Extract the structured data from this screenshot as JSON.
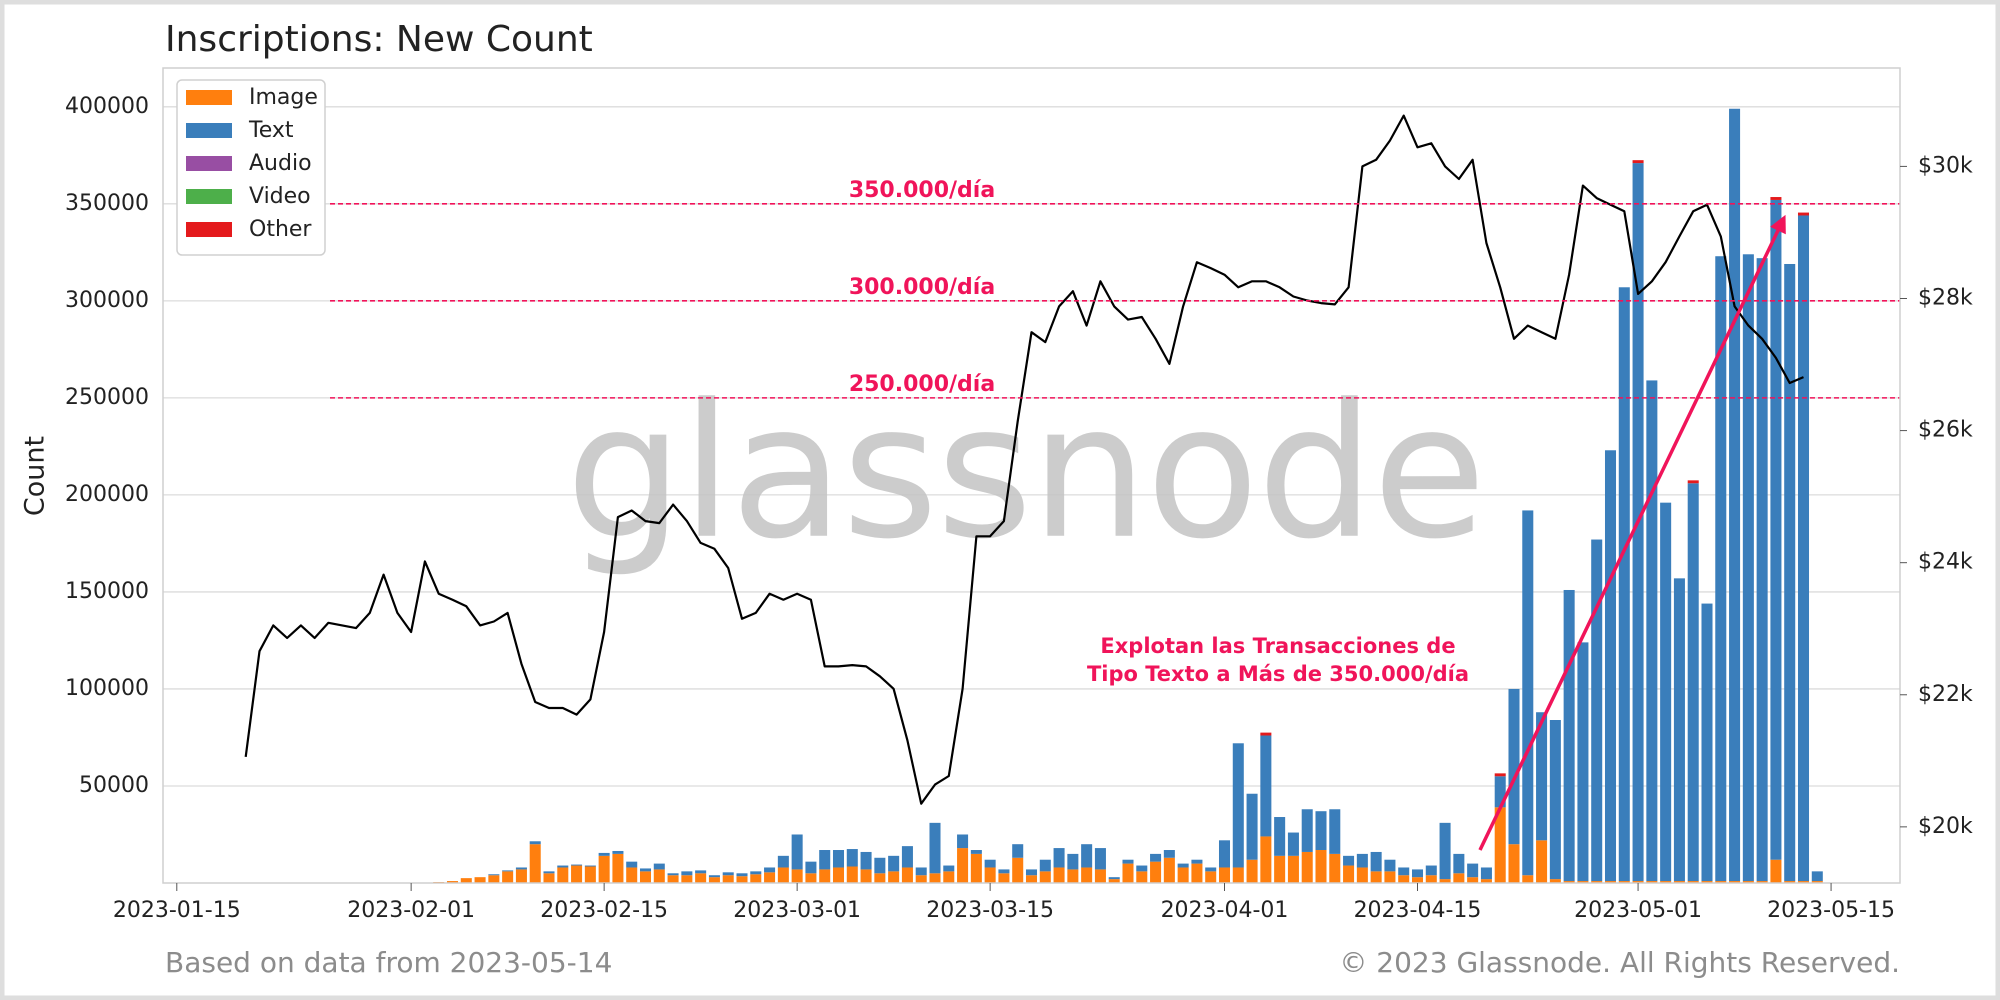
{
  "chart_data": {
    "type": "bar",
    "title": "Inscriptions: New Count",
    "y_label": "Count",
    "watermark": "glassnode",
    "footer_left": "Based on data from 2023-05-14",
    "footer_right": "© 2023 Glassnode. All Rights Reserved.",
    "annotation": [
      "Explotan las Transacciones de",
      "Tipo Texto a Más de 350.000/día"
    ],
    "reference_lines": [
      {
        "value": 350000,
        "label": "350.000/día"
      },
      {
        "value": 300000,
        "label": "300.000/día"
      },
      {
        "value": 250000,
        "label": "250.000/día"
      }
    ],
    "reference_color": "#f0145a",
    "legend": "upper left",
    "grid": true,
    "stacked": true,
    "xlim": [
      "2023-01-14",
      "2023-05-20"
    ],
    "xticks": [
      "2023-01-15",
      "2023-02-01",
      "2023-02-15",
      "2023-03-01",
      "2023-03-15",
      "2023-04-01",
      "2023-04-15",
      "2023-05-01",
      "2023-05-15"
    ],
    "ylim": [
      0,
      420000
    ],
    "yticks": [
      50000,
      100000,
      150000,
      200000,
      250000,
      300000,
      350000,
      400000
    ],
    "y2lim": [
      19150,
      31490
    ],
    "y2ticks": [
      {
        "value": 20000,
        "label": "$20k"
      },
      {
        "value": 22000,
        "label": "$22k"
      },
      {
        "value": 24000,
        "label": "$24k"
      },
      {
        "value": 26000,
        "label": "$26k"
      },
      {
        "value": 28000,
        "label": "$28k"
      },
      {
        "value": 30000,
        "label": "$30k"
      }
    ],
    "x": [
      "2023-02-03",
      "2023-02-04",
      "2023-02-05",
      "2023-02-06",
      "2023-02-07",
      "2023-02-08",
      "2023-02-09",
      "2023-02-10",
      "2023-02-11",
      "2023-02-12",
      "2023-02-13",
      "2023-02-14",
      "2023-02-15",
      "2023-02-16",
      "2023-02-17",
      "2023-02-18",
      "2023-02-19",
      "2023-02-20",
      "2023-02-21",
      "2023-02-22",
      "2023-02-23",
      "2023-02-24",
      "2023-02-25",
      "2023-02-26",
      "2023-02-27",
      "2023-02-28",
      "2023-03-01",
      "2023-03-02",
      "2023-03-03",
      "2023-03-04",
      "2023-03-05",
      "2023-03-06",
      "2023-03-07",
      "2023-03-08",
      "2023-03-09",
      "2023-03-10",
      "2023-03-11",
      "2023-03-12",
      "2023-03-13",
      "2023-03-14",
      "2023-03-15",
      "2023-03-16",
      "2023-03-17",
      "2023-03-18",
      "2023-03-19",
      "2023-03-20",
      "2023-03-21",
      "2023-03-22",
      "2023-03-23",
      "2023-03-24",
      "2023-03-25",
      "2023-03-26",
      "2023-03-27",
      "2023-03-28",
      "2023-03-29",
      "2023-03-30",
      "2023-03-31",
      "2023-04-01",
      "2023-04-02",
      "2023-04-03",
      "2023-04-04",
      "2023-04-05",
      "2023-04-06",
      "2023-04-07",
      "2023-04-08",
      "2023-04-09",
      "2023-04-10",
      "2023-04-11",
      "2023-04-12",
      "2023-04-13",
      "2023-04-14",
      "2023-04-15",
      "2023-04-16",
      "2023-04-17",
      "2023-04-18",
      "2023-04-19",
      "2023-04-20",
      "2023-04-21",
      "2023-04-22",
      "2023-04-23",
      "2023-04-24",
      "2023-04-25",
      "2023-04-26",
      "2023-04-27",
      "2023-04-28",
      "2023-04-29",
      "2023-04-30",
      "2023-05-01",
      "2023-05-02",
      "2023-05-03",
      "2023-05-04",
      "2023-05-05",
      "2023-05-06",
      "2023-05-07",
      "2023-05-08",
      "2023-05-09",
      "2023-05-10",
      "2023-05-11",
      "2023-05-12",
      "2023-05-13",
      "2023-05-14"
    ],
    "series": [
      {
        "name": "Image",
        "type": "bar",
        "color": "#ff7f0e",
        "values": [
          500,
          1000,
          2500,
          3000,
          4000,
          6000,
          7000,
          20000,
          5000,
          8000,
          9000,
          8500,
          14000,
          15000,
          8000,
          6000,
          7000,
          4000,
          4000,
          5000,
          3000,
          4000,
          3500,
          4500,
          5500,
          8000,
          7000,
          5000,
          7000,
          8000,
          8500,
          7000,
          5000,
          6000,
          8000,
          4000,
          5000,
          6000,
          18000,
          15000,
          8000,
          5000,
          13000,
          4000,
          6000,
          8000,
          7000,
          8000,
          7000,
          2000,
          10000,
          6000,
          11000,
          13000,
          8000,
          10000,
          6000,
          8000,
          8000,
          12000,
          24000,
          14000,
          14000,
          16000,
          17000,
          15000,
          9000,
          8000,
          6000,
          6000,
          4000,
          3000,
          4000,
          2000,
          5000,
          3000,
          2000,
          39000,
          20000,
          4000,
          22000,
          2000,
          1000,
          1000,
          1000,
          1000,
          1000,
          1000,
          1000,
          1000,
          1000,
          1000,
          1000,
          1000,
          1000,
          1000,
          1000,
          12000,
          1000,
          1000,
          1000
        ]
      },
      {
        "name": "Text",
        "type": "bar",
        "color": "#3a7ebb",
        "values": [
          0,
          0,
          0,
          0,
          500,
          500,
          1000,
          1500,
          1000,
          1000,
          500,
          500,
          1500,
          1500,
          3000,
          1500,
          3000,
          1000,
          2000,
          1500,
          1000,
          1500,
          1500,
          1500,
          2500,
          6000,
          18000,
          6000,
          10000,
          9000,
          9000,
          9000,
          8000,
          8000,
          11000,
          4000,
          26000,
          3000,
          7000,
          2000,
          4000,
          2000,
          7000,
          3000,
          6000,
          10000,
          8000,
          12000,
          11000,
          1000,
          2000,
          3000,
          4000,
          4000,
          2000,
          2000,
          2000,
          14000,
          64000,
          34000,
          52000,
          20000,
          12000,
          22000,
          20000,
          23000,
          5000,
          7000,
          10000,
          6000,
          4000,
          4000,
          5000,
          29000,
          10000,
          7000,
          6000,
          16000,
          80000,
          188000,
          66000,
          82000,
          150000,
          123000,
          176000,
          222000,
          306000,
          370000,
          258000,
          195000,
          156000,
          205000,
          143000,
          322000,
          398000,
          323000,
          321000,
          340000,
          318000,
          343000,
          5000
        ]
      },
      {
        "name": "Audio",
        "type": "bar",
        "color": "#984ea3",
        "values": [
          0,
          0,
          0,
          0,
          0,
          0,
          0,
          0,
          0,
          0,
          0,
          0,
          0,
          0,
          0,
          0,
          0,
          0,
          0,
          0,
          0,
          0,
          0,
          0,
          0,
          0,
          0,
          0,
          0,
          0,
          0,
          0,
          0,
          0,
          0,
          0,
          0,
          0,
          0,
          0,
          0,
          0,
          0,
          0,
          0,
          0,
          0,
          0,
          0,
          0,
          0,
          0,
          0,
          0,
          0,
          0,
          0,
          0,
          0,
          0,
          0,
          0,
          0,
          0,
          0,
          0,
          0,
          0,
          0,
          0,
          0,
          0,
          0,
          0,
          0,
          0,
          0,
          0,
          0,
          0,
          0,
          0,
          0,
          0,
          0,
          0,
          0,
          0,
          0,
          0,
          0,
          0,
          0,
          0,
          0,
          0,
          0,
          0,
          0,
          0,
          0
        ]
      },
      {
        "name": "Video",
        "type": "bar",
        "color": "#4daf4a",
        "values": [
          0,
          0,
          0,
          0,
          0,
          0,
          0,
          0,
          0,
          0,
          0,
          0,
          0,
          0,
          0,
          0,
          0,
          0,
          0,
          0,
          0,
          0,
          0,
          0,
          0,
          0,
          0,
          0,
          0,
          0,
          0,
          0,
          0,
          0,
          0,
          0,
          0,
          0,
          0,
          0,
          0,
          0,
          0,
          0,
          0,
          0,
          0,
          0,
          0,
          0,
          0,
          0,
          0,
          0,
          0,
          0,
          0,
          0,
          0,
          0,
          0,
          0,
          0,
          0,
          0,
          0,
          0,
          0,
          0,
          0,
          0,
          0,
          0,
          0,
          0,
          0,
          0,
          0,
          0,
          0,
          0,
          0,
          0,
          0,
          0,
          0,
          0,
          0,
          0,
          0,
          0,
          0,
          0,
          0,
          0,
          0,
          0,
          0,
          0,
          0,
          0
        ]
      },
      {
        "name": "Other",
        "type": "bar",
        "color": "#e41a1c",
        "values": [
          0,
          0,
          0,
          0,
          0,
          0,
          0,
          0,
          0,
          0,
          0,
          0,
          0,
          0,
          0,
          0,
          0,
          0,
          0,
          0,
          0,
          0,
          0,
          0,
          0,
          0,
          0,
          0,
          0,
          0,
          0,
          0,
          0,
          0,
          0,
          0,
          0,
          0,
          0,
          0,
          0,
          0,
          0,
          0,
          0,
          0,
          0,
          0,
          0,
          0,
          0,
          0,
          0,
          0,
          0,
          0,
          0,
          0,
          0,
          0,
          1500,
          0,
          0,
          0,
          0,
          0,
          0,
          0,
          0,
          0,
          0,
          0,
          0,
          0,
          0,
          0,
          0,
          1500,
          0,
          0,
          0,
          0,
          0,
          0,
          0,
          0,
          0,
          1500,
          0,
          0,
          0,
          1500,
          0,
          0,
          0,
          0,
          0,
          1500,
          0,
          1500,
          0
        ]
      },
      {
        "type": "line",
        "axis": "y2",
        "color": "#000000",
        "x": [
          "2023-01-20",
          "2023-01-21",
          "2023-01-22",
          "2023-01-23",
          "2023-01-24",
          "2023-01-25",
          "2023-01-26",
          "2023-01-27",
          "2023-01-28",
          "2023-01-29",
          "2023-01-30",
          "2023-01-31",
          "2023-02-01",
          "2023-02-02",
          "2023-02-03",
          "2023-02-04",
          "2023-02-05",
          "2023-02-06",
          "2023-02-07",
          "2023-02-08",
          "2023-02-09",
          "2023-02-10",
          "2023-02-11",
          "2023-02-12",
          "2023-02-13",
          "2023-02-14",
          "2023-02-15",
          "2023-02-16",
          "2023-02-17",
          "2023-02-18",
          "2023-02-19",
          "2023-02-20",
          "2023-02-21",
          "2023-02-22",
          "2023-02-23",
          "2023-02-24",
          "2023-02-25",
          "2023-02-26",
          "2023-02-27",
          "2023-02-28",
          "2023-03-01",
          "2023-03-02",
          "2023-03-03",
          "2023-03-04",
          "2023-03-05",
          "2023-03-06",
          "2023-03-07",
          "2023-03-08",
          "2023-03-09",
          "2023-03-10",
          "2023-03-11",
          "2023-03-12",
          "2023-03-13",
          "2023-03-14",
          "2023-03-15",
          "2023-03-16",
          "2023-03-17",
          "2023-03-18",
          "2023-03-19",
          "2023-03-20",
          "2023-03-21",
          "2023-03-22",
          "2023-03-23",
          "2023-03-24",
          "2023-03-25",
          "2023-03-26",
          "2023-03-27",
          "2023-03-28",
          "2023-03-29",
          "2023-03-30",
          "2023-03-31",
          "2023-04-01",
          "2023-04-02",
          "2023-04-03",
          "2023-04-04",
          "2023-04-05",
          "2023-04-06",
          "2023-04-07",
          "2023-04-08",
          "2023-04-09",
          "2023-04-10",
          "2023-04-11",
          "2023-04-12",
          "2023-04-13",
          "2023-04-14",
          "2023-04-15",
          "2023-04-16",
          "2023-04-17",
          "2023-04-18",
          "2023-04-19",
          "2023-04-20",
          "2023-04-21",
          "2023-04-22",
          "2023-04-23",
          "2023-04-24",
          "2023-04-25",
          "2023-04-26",
          "2023-04-27",
          "2023-04-28",
          "2023-04-29",
          "2023-04-30",
          "2023-05-01",
          "2023-05-02",
          "2023-05-03",
          "2023-05-04",
          "2023-05-05",
          "2023-05-06",
          "2023-05-07",
          "2023-05-08",
          "2023-05-09",
          "2023-05-10",
          "2023-05-11",
          "2023-05-12",
          "2023-05-13"
        ],
        "values": [
          21060,
          22660,
          23050,
          22860,
          23050,
          22860,
          23090,
          23050,
          23010,
          23240,
          23820,
          23240,
          22950,
          24020,
          23530,
          23440,
          23340,
          23050,
          23110,
          23240,
          22470,
          21890,
          21800,
          21800,
          21700,
          21930,
          22950,
          24690,
          24790,
          24630,
          24600,
          24880,
          24630,
          24300,
          24210,
          23920,
          23150,
          23240,
          23530,
          23440,
          23530,
          23440,
          22430,
          22430,
          22450,
          22430,
          22280,
          22090,
          21310,
          20350,
          20640,
          20770,
          22090,
          24400,
          24400,
          24630,
          26140,
          27490,
          27340,
          27880,
          28110,
          27590,
          28260,
          27880,
          27680,
          27720,
          27390,
          27010,
          27880,
          28550,
          28460,
          28360,
          28170,
          28260,
          28260,
          28170,
          28030,
          27970,
          27930,
          27910,
          28170,
          30000,
          30100,
          30390,
          30770,
          30290,
          30350,
          30000,
          29810,
          30100,
          28840,
          28170,
          27390,
          27590,
          27490,
          27390,
          28360,
          29710,
          29520,
          29420,
          29320,
          28070,
          28260,
          28550,
          28940,
          29320,
          29420,
          28940,
          27880,
          27590,
          27390,
          27100,
          26720,
          26810
        ]
      }
    ]
  }
}
